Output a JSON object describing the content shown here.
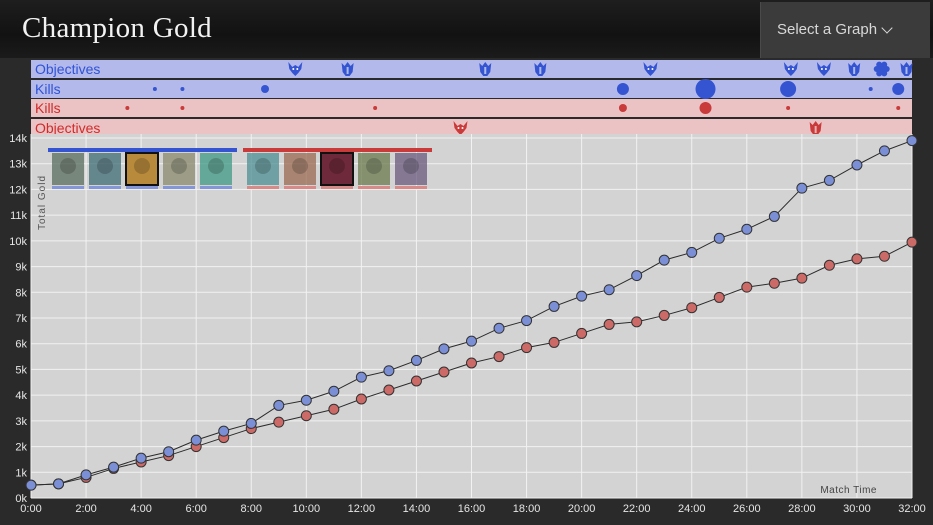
{
  "header": {
    "title": "Champion Gold",
    "graph_select_label": "Select a Graph"
  },
  "timeline": {
    "rows": [
      {
        "label": "Objectives",
        "team": "blue",
        "kind": "objectives"
      },
      {
        "label": "Kills",
        "team": "blue",
        "kind": "kills"
      },
      {
        "label": "Kills",
        "team": "red",
        "kind": "kills"
      },
      {
        "label": "Objectives",
        "team": "red",
        "kind": "objectives"
      }
    ],
    "blue_objectives": [
      {
        "t": 9.6,
        "icon": "dragon-icon"
      },
      {
        "t": 11.5,
        "icon": "herald-icon"
      },
      {
        "t": 16.5,
        "icon": "herald-icon"
      },
      {
        "t": 18.5,
        "icon": "herald-icon"
      },
      {
        "t": 22.5,
        "icon": "dragon-icon"
      },
      {
        "t": 27.6,
        "icon": "dragon-icon"
      },
      {
        "t": 28.8,
        "icon": "dragon-icon"
      },
      {
        "t": 29.9,
        "icon": "herald-icon"
      },
      {
        "t": 30.9,
        "icon": "baron-icon"
      },
      {
        "t": 31.8,
        "icon": "herald-icon"
      }
    ],
    "blue_kills": [
      {
        "t": 4.5,
        "size": 1
      },
      {
        "t": 5.5,
        "size": 1
      },
      {
        "t": 8.5,
        "size": 2
      },
      {
        "t": 21.5,
        "size": 3
      },
      {
        "t": 24.5,
        "size": 6
      },
      {
        "t": 27.5,
        "size": 4
      },
      {
        "t": 30.5,
        "size": 1
      },
      {
        "t": 31.5,
        "size": 3
      }
    ],
    "red_kills": [
      {
        "t": 3.5,
        "size": 1
      },
      {
        "t": 5.5,
        "size": 1
      },
      {
        "t": 12.5,
        "size": 1
      },
      {
        "t": 21.5,
        "size": 2
      },
      {
        "t": 24.5,
        "size": 3
      },
      {
        "t": 27.5,
        "size": 1
      },
      {
        "t": 31.5,
        "size": 1
      }
    ],
    "red_objectives": [
      {
        "t": 15.6,
        "icon": "dragon-icon"
      },
      {
        "t": 28.5,
        "icon": "herald-icon"
      }
    ]
  },
  "champions": {
    "blue": [
      {
        "name": "blue-champion-1",
        "color": "#5a6d5e",
        "selected": false
      },
      {
        "name": "blue-champion-2",
        "color": "#3f6c75",
        "selected": false
      },
      {
        "name": "blue-champion-3",
        "color": "#b88a3c",
        "selected": true
      },
      {
        "name": "blue-champion-4",
        "color": "#8a8a6e",
        "selected": false
      },
      {
        "name": "blue-champion-5",
        "color": "#3f9a86",
        "selected": false
      }
    ],
    "red": [
      {
        "name": "red-champion-1",
        "color": "#4c8f94",
        "selected": false
      },
      {
        "name": "red-champion-2",
        "color": "#9b6a52",
        "selected": false
      },
      {
        "name": "red-champion-3",
        "color": "#6e2a3a",
        "selected": true
      },
      {
        "name": "red-champion-4",
        "color": "#6a7a4c",
        "selected": false
      },
      {
        "name": "red-champion-5",
        "color": "#6a5a7e",
        "selected": false
      }
    ]
  },
  "colors": {
    "blue_team": "#3454d1",
    "red_team": "#c93a3a",
    "blue_point": "#7b8fd6",
    "red_point": "#cc6a68"
  },
  "chart_data": {
    "type": "line",
    "title": "",
    "xlabel": "Match Time",
    "ylabel": "Total Gold",
    "xlim": [
      0,
      32
    ],
    "ylim": [
      0,
      14000
    ],
    "grid": true,
    "x_ticks": [
      "0:00",
      "2:00",
      "4:00",
      "6:00",
      "8:00",
      "10:00",
      "12:00",
      "14:00",
      "16:00",
      "18:00",
      "20:00",
      "22:00",
      "24:00",
      "26:00",
      "28:00",
      "30:00",
      "32:00"
    ],
    "y_ticks": [
      "0k",
      "1k",
      "2k",
      "3k",
      "4k",
      "5k",
      "6k",
      "7k",
      "8k",
      "9k",
      "10k",
      "11k",
      "12k",
      "13k",
      "14k"
    ],
    "x": [
      0,
      1,
      2,
      3,
      4,
      5,
      6,
      7,
      8,
      9,
      10,
      11,
      12,
      13,
      14,
      15,
      16,
      17,
      18,
      19,
      20,
      21,
      22,
      23,
      24,
      25,
      26,
      27,
      28,
      29,
      30,
      31,
      32
    ],
    "series": [
      {
        "team": "blue",
        "values": [
          500,
          550,
          900,
          1200,
          1550,
          1800,
          2250,
          2600,
          2900,
          3600,
          3800,
          4150,
          4700,
          4950,
          5350,
          5800,
          6100,
          6600,
          6900,
          7450,
          7850,
          8100,
          8650,
          9250,
          9550,
          10100,
          10450,
          10950,
          12050,
          12350,
          12950,
          13500,
          13900
        ]
      },
      {
        "team": "red",
        "values": [
          500,
          550,
          800,
          1150,
          1400,
          1650,
          2000,
          2350,
          2700,
          2950,
          3200,
          3450,
          3850,
          4200,
          4550,
          4900,
          5250,
          5500,
          5850,
          6050,
          6400,
          6750,
          6850,
          7100,
          7400,
          7800,
          8200,
          8350,
          8550,
          9050,
          9300,
          9400,
          9950
        ]
      }
    ]
  }
}
